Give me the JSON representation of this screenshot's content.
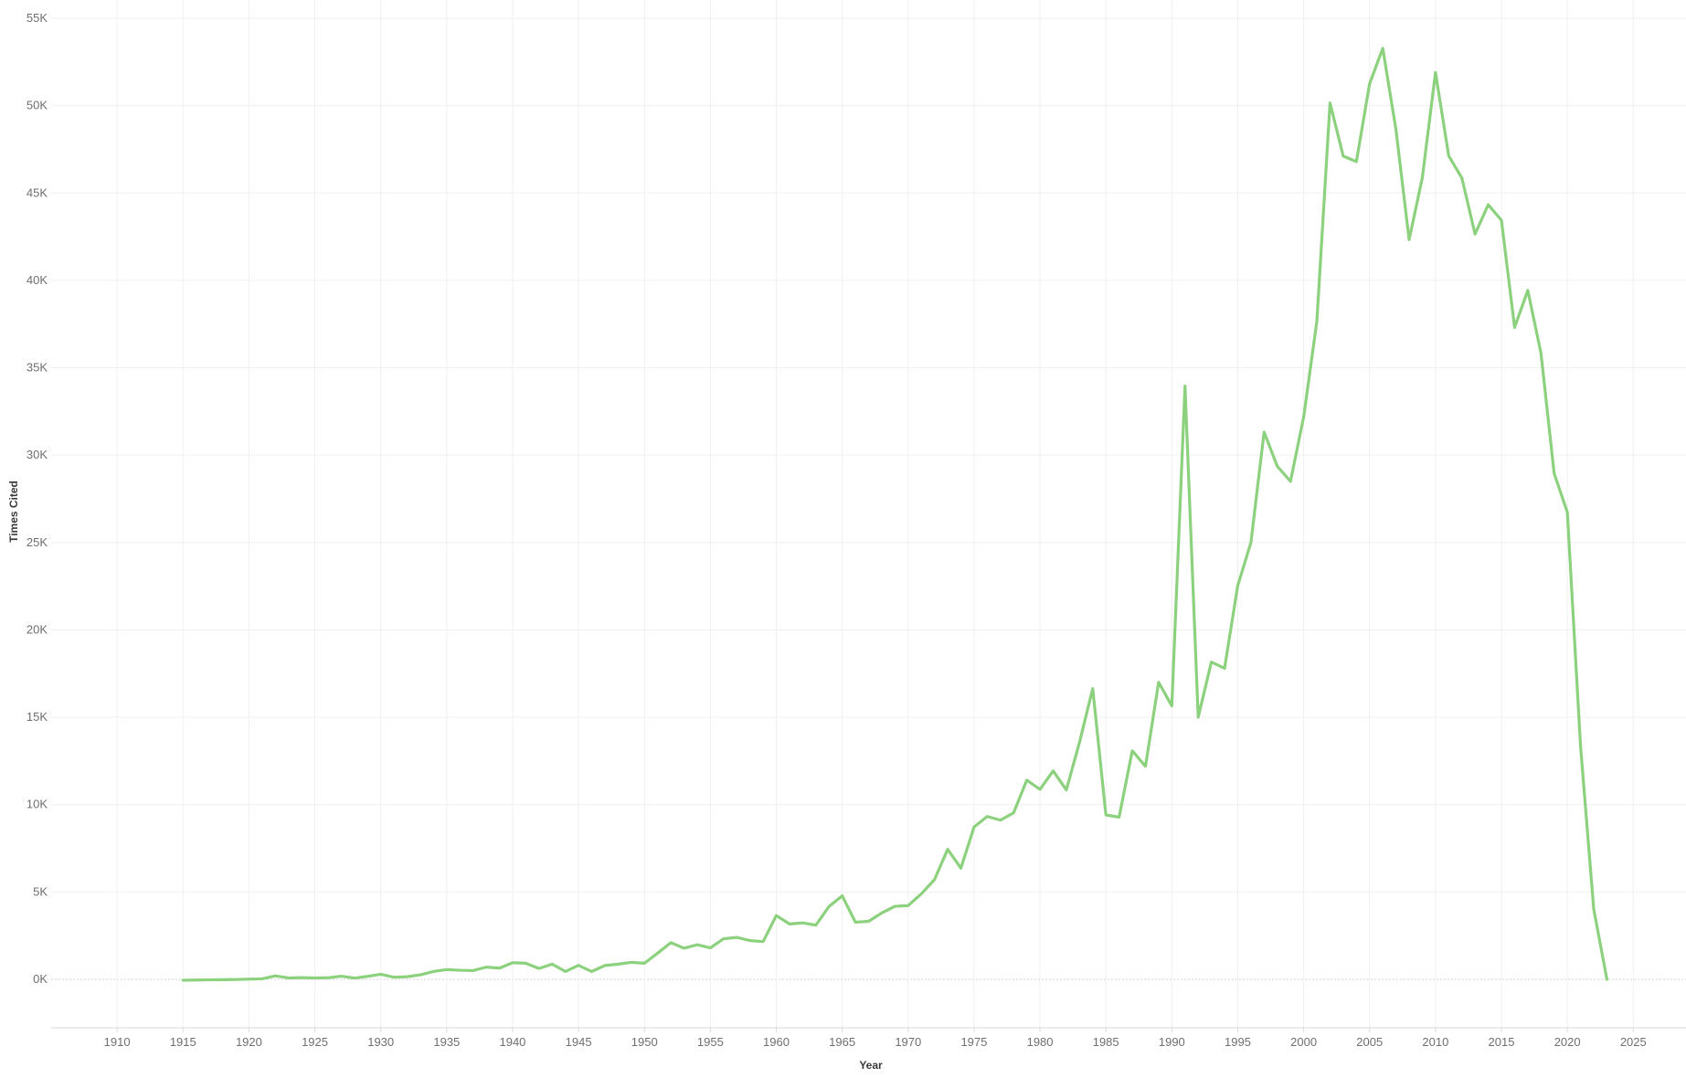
{
  "chart_data": {
    "type": "line",
    "title": "",
    "xlabel": "Year",
    "ylabel": "Times Cited",
    "x_ticks": [
      "1910",
      "1915",
      "1920",
      "1925",
      "1930",
      "1935",
      "1940",
      "1945",
      "1950",
      "1955",
      "1960",
      "1965",
      "1970",
      "1975",
      "1980",
      "1985",
      "1990",
      "1995",
      "2000",
      "2005",
      "2010",
      "2015",
      "2020",
      "2025"
    ],
    "y_ticks": [
      "0K",
      "5K",
      "10K",
      "15K",
      "20K",
      "25K",
      "30K",
      "35K",
      "40K",
      "45K",
      "50K",
      "55K"
    ],
    "xlim": [
      1905,
      2029
    ],
    "ylim": [
      -3000,
      55000
    ],
    "grid": true,
    "line_color": "#8cd17d",
    "series": [
      {
        "x": [
          1915,
          1916,
          1917,
          1918,
          1919,
          1920,
          1921,
          1922,
          1923,
          1924,
          1925,
          1926,
          1927,
          1928,
          1929,
          1930,
          1931,
          1932,
          1933,
          1934,
          1935,
          1936,
          1937,
          1938,
          1939,
          1940,
          1941,
          1942,
          1943,
          1944,
          1945,
          1946,
          1947,
          1948,
          1949,
          1950,
          1951,
          1952,
          1953,
          1954,
          1955,
          1956,
          1957,
          1958,
          1959,
          1960,
          1961,
          1962,
          1963,
          1964,
          1965,
          1966,
          1967,
          1968,
          1969,
          1970,
          1971,
          1972,
          1973,
          1974,
          1975,
          1976,
          1977,
          1978,
          1979,
          1980,
          1981,
          1982,
          1983,
          1984,
          1985,
          1986,
          1987,
          1988,
          1989,
          1990,
          1991,
          1992,
          1993,
          1994,
          1995,
          1996,
          1997,
          1998,
          1999,
          2000,
          2001,
          2002,
          2003,
          2004,
          2005,
          2006,
          2007,
          2008,
          2009,
          2010,
          2011,
          2012,
          2013,
          2014,
          2015,
          2016,
          2017,
          2018,
          2019,
          2020,
          2021,
          2022,
          2023
        ],
        "values": [
          -50,
          -40,
          -30,
          -20,
          -10,
          10,
          30,
          200,
          80,
          100,
          80,
          90,
          180,
          70,
          170,
          290,
          120,
          150,
          260,
          450,
          560,
          520,
          500,
          700,
          640,
          950,
          920,
          620,
          870,
          450,
          800,
          450,
          790,
          870,
          970,
          920,
          1500,
          2100,
          1780,
          1980,
          1800,
          2320,
          2400,
          2220,
          2160,
          3650,
          3170,
          3230,
          3100,
          4170,
          4780,
          3270,
          3320,
          3800,
          4180,
          4220,
          4890,
          5710,
          7440,
          6360,
          8720,
          9320,
          9110,
          9530,
          11400,
          10870,
          11930,
          10840,
          13570,
          16640,
          9410,
          9280,
          13080,
          12190,
          17000,
          15650,
          33950,
          15000,
          18160,
          17800,
          22530,
          25000,
          31320,
          29360,
          28500,
          32180,
          37650,
          50150,
          47110,
          46800,
          51250,
          53280,
          48630,
          42330,
          45870,
          51900,
          47130,
          45860,
          42650,
          44330,
          43440,
          37310,
          39430,
          35830,
          28950,
          26730,
          13360,
          4030,
          0
        ]
      }
    ]
  }
}
